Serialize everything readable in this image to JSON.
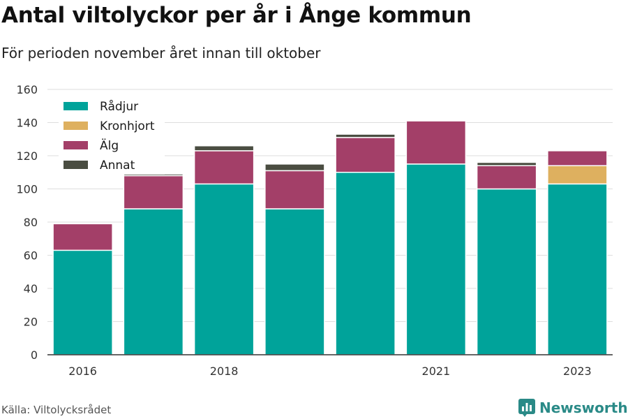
{
  "header": {
    "title": "Antal viltolyckor per år i Ånge kommun",
    "subtitle": "För perioden november året innan till oktober"
  },
  "footer": {
    "source": "Källa: Viltolycksrådet",
    "brand": "Newsworthy",
    "brand_icon": "bar-chart-logo-icon"
  },
  "chart_data": {
    "type": "bar",
    "stacked": true,
    "categories": [
      "2016",
      "2017",
      "2018",
      "2019",
      "2020",
      "2021",
      "2022",
      "2023"
    ],
    "x_tick_labels": [
      "2016",
      "",
      "2018",
      "",
      "",
      "2021",
      "",
      "2023"
    ],
    "ylim": [
      0,
      160
    ],
    "yticks": [
      0,
      20,
      40,
      60,
      80,
      100,
      120,
      140,
      160
    ],
    "grid": true,
    "legend_position": "top-left",
    "series": [
      {
        "name": "Rådjur",
        "color": "#00a39a",
        "values": [
          63,
          88,
          103,
          88,
          110,
          115,
          100,
          103
        ]
      },
      {
        "name": "Kronhjort",
        "color": "#deb05f",
        "values": [
          0,
          0,
          0,
          0,
          0,
          0,
          0,
          11
        ]
      },
      {
        "name": "Älg",
        "color": "#a33f68",
        "values": [
          16,
          20,
          20,
          23,
          21,
          26,
          14,
          9
        ]
      },
      {
        "name": "Annat",
        "color": "#4a4d41",
        "values": [
          0,
          1,
          3,
          4,
          2,
          0,
          2,
          0
        ]
      }
    ]
  }
}
